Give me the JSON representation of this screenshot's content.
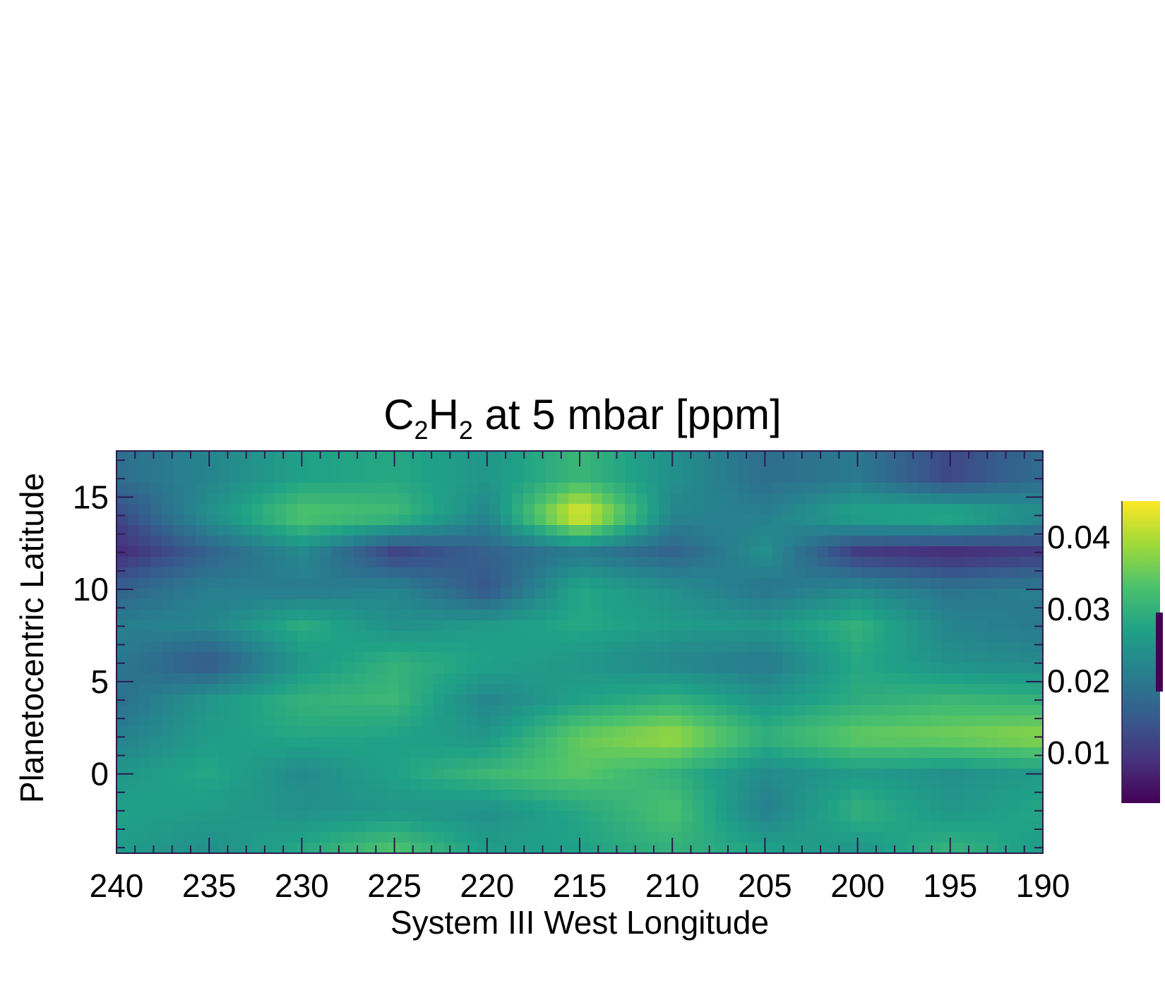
{
  "title": {
    "main_a": "C",
    "sub_a": "2",
    "main_b": "H",
    "sub_b": "2",
    "rest": " at 5 mbar [ppm]"
  },
  "chart_data": {
    "type": "heatmap",
    "xlabel": "System III West Longitude",
    "ylabel": "Planetocentric Latitude",
    "xlim": [
      240,
      190
    ],
    "ylim": [
      -4.3,
      17.5
    ],
    "x_ticks": [
      240,
      235,
      230,
      225,
      220,
      215,
      210,
      205,
      200,
      195,
      190
    ],
    "y_ticks": [
      0,
      5,
      10,
      15
    ],
    "colorbar": {
      "range": [
        0.003,
        0.045
      ],
      "ticks": [
        "0.01",
        "0.02",
        "0.03",
        "0.04"
      ],
      "tick_values": [
        0.01,
        0.02,
        0.03,
        0.04
      ],
      "colormap": "viridis",
      "colors": [
        "#440154",
        "#46327e",
        "#365c8d",
        "#277f8e",
        "#1fa187",
        "#4ac16d",
        "#a0da39",
        "#fde725"
      ]
    },
    "x": [
      240,
      235,
      230,
      225,
      220,
      215,
      210,
      205,
      200,
      195,
      190
    ],
    "y": [
      -4,
      -2,
      0,
      2,
      4,
      6,
      8,
      10,
      12,
      14,
      16
    ],
    "z": [
      [
        0.026,
        0.024,
        0.028,
        0.033,
        0.026,
        0.027,
        0.03,
        0.027,
        0.025,
        0.03,
        0.026
      ],
      [
        0.027,
        0.026,
        0.024,
        0.025,
        0.024,
        0.028,
        0.033,
        0.021,
        0.03,
        0.025,
        0.028
      ],
      [
        0.025,
        0.028,
        0.023,
        0.027,
        0.031,
        0.034,
        0.03,
        0.023,
        0.026,
        0.024,
        0.026
      ],
      [
        0.021,
        0.026,
        0.028,
        0.027,
        0.025,
        0.035,
        0.039,
        0.03,
        0.035,
        0.036,
        0.038
      ],
      [
        0.018,
        0.025,
        0.03,
        0.031,
        0.022,
        0.027,
        0.03,
        0.025,
        0.029,
        0.031,
        0.03
      ],
      [
        0.02,
        0.014,
        0.025,
        0.03,
        0.027,
        0.025,
        0.022,
        0.02,
        0.028,
        0.024,
        0.023
      ],
      [
        0.021,
        0.022,
        0.029,
        0.024,
        0.026,
        0.028,
        0.026,
        0.025,
        0.03,
        0.022,
        0.02
      ],
      [
        0.016,
        0.021,
        0.02,
        0.022,
        0.014,
        0.028,
        0.024,
        0.019,
        0.023,
        0.019,
        0.021
      ],
      [
        0.008,
        0.016,
        0.023,
        0.011,
        0.016,
        0.02,
        0.016,
        0.024,
        0.01,
        0.008,
        0.01
      ],
      [
        0.012,
        0.024,
        0.034,
        0.032,
        0.022,
        0.045,
        0.022,
        0.021,
        0.028,
        0.03,
        0.024
      ],
      [
        0.018,
        0.022,
        0.027,
        0.028,
        0.025,
        0.031,
        0.024,
        0.018,
        0.02,
        0.012,
        0.018
      ]
    ]
  }
}
